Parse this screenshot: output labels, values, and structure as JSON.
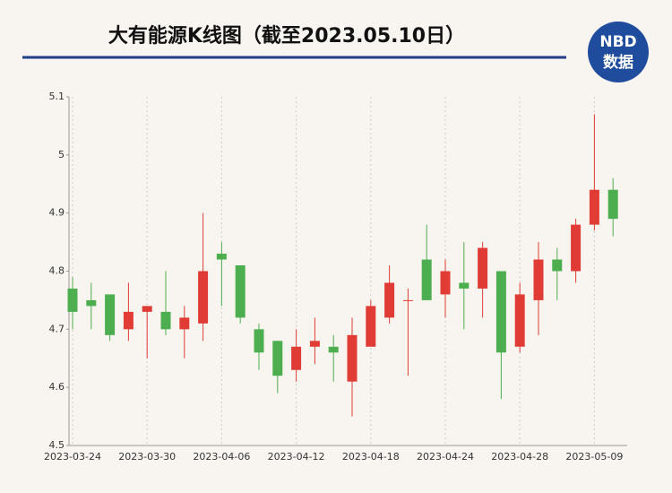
{
  "chart_data": {
    "type": "candlestick",
    "title": "大有能源K线图（截至2023.05.10日）",
    "logo": {
      "line1": "NBD",
      "line2": "数据"
    },
    "categories": [
      "2023-03-24",
      null,
      null,
      null,
      "2023-03-30",
      null,
      null,
      null,
      "2023-04-06",
      null,
      null,
      null,
      "2023-04-12",
      null,
      null,
      null,
      "2023-04-18",
      null,
      null,
      null,
      "2023-04-24",
      null,
      null,
      null,
      "2023-04-28",
      null,
      null,
      null,
      "2023-05-09",
      null
    ],
    "open": [
      4.77,
      4.75,
      4.76,
      4.7,
      4.73,
      4.73,
      4.7,
      4.71,
      4.83,
      4.81,
      4.7,
      4.68,
      4.63,
      4.67,
      4.67,
      4.61,
      4.67,
      4.72,
      4.75,
      4.82,
      4.76,
      4.78,
      4.77,
      4.8,
      4.67,
      4.75,
      4.82,
      4.8,
      4.88,
      4.94
    ],
    "high": [
      4.79,
      4.78,
      4.76,
      4.78,
      4.74,
      4.8,
      4.74,
      4.9,
      4.85,
      4.81,
      4.71,
      4.68,
      4.7,
      4.72,
      4.69,
      4.72,
      4.75,
      4.81,
      4.77,
      4.88,
      4.82,
      4.85,
      4.85,
      4.8,
      4.78,
      4.85,
      4.84,
      4.89,
      5.07,
      4.96
    ],
    "low": [
      4.7,
      4.7,
      4.68,
      4.68,
      4.65,
      4.69,
      4.65,
      4.68,
      4.74,
      4.71,
      4.63,
      4.59,
      4.61,
      4.64,
      4.61,
      4.55,
      4.67,
      4.71,
      4.62,
      4.75,
      4.72,
      4.7,
      4.72,
      4.58,
      4.66,
      4.69,
      4.75,
      4.78,
      4.87,
      4.86
    ],
    "close": [
      4.73,
      4.74,
      4.69,
      4.73,
      4.74,
      4.7,
      4.72,
      4.8,
      4.82,
      4.72,
      4.66,
      4.62,
      4.67,
      4.68,
      4.66,
      4.69,
      4.74,
      4.78,
      4.75,
      4.75,
      4.8,
      4.77,
      4.84,
      4.66,
      4.76,
      4.82,
      4.8,
      4.88,
      4.94,
      4.89
    ],
    "up_color": "#e03c35",
    "down_color": "#4cae4f",
    "ylim": [
      4.5,
      5.1
    ],
    "yticks": [
      4.5,
      4.6,
      4.7,
      4.8,
      4.9,
      5,
      5.1
    ],
    "grid": true
  }
}
